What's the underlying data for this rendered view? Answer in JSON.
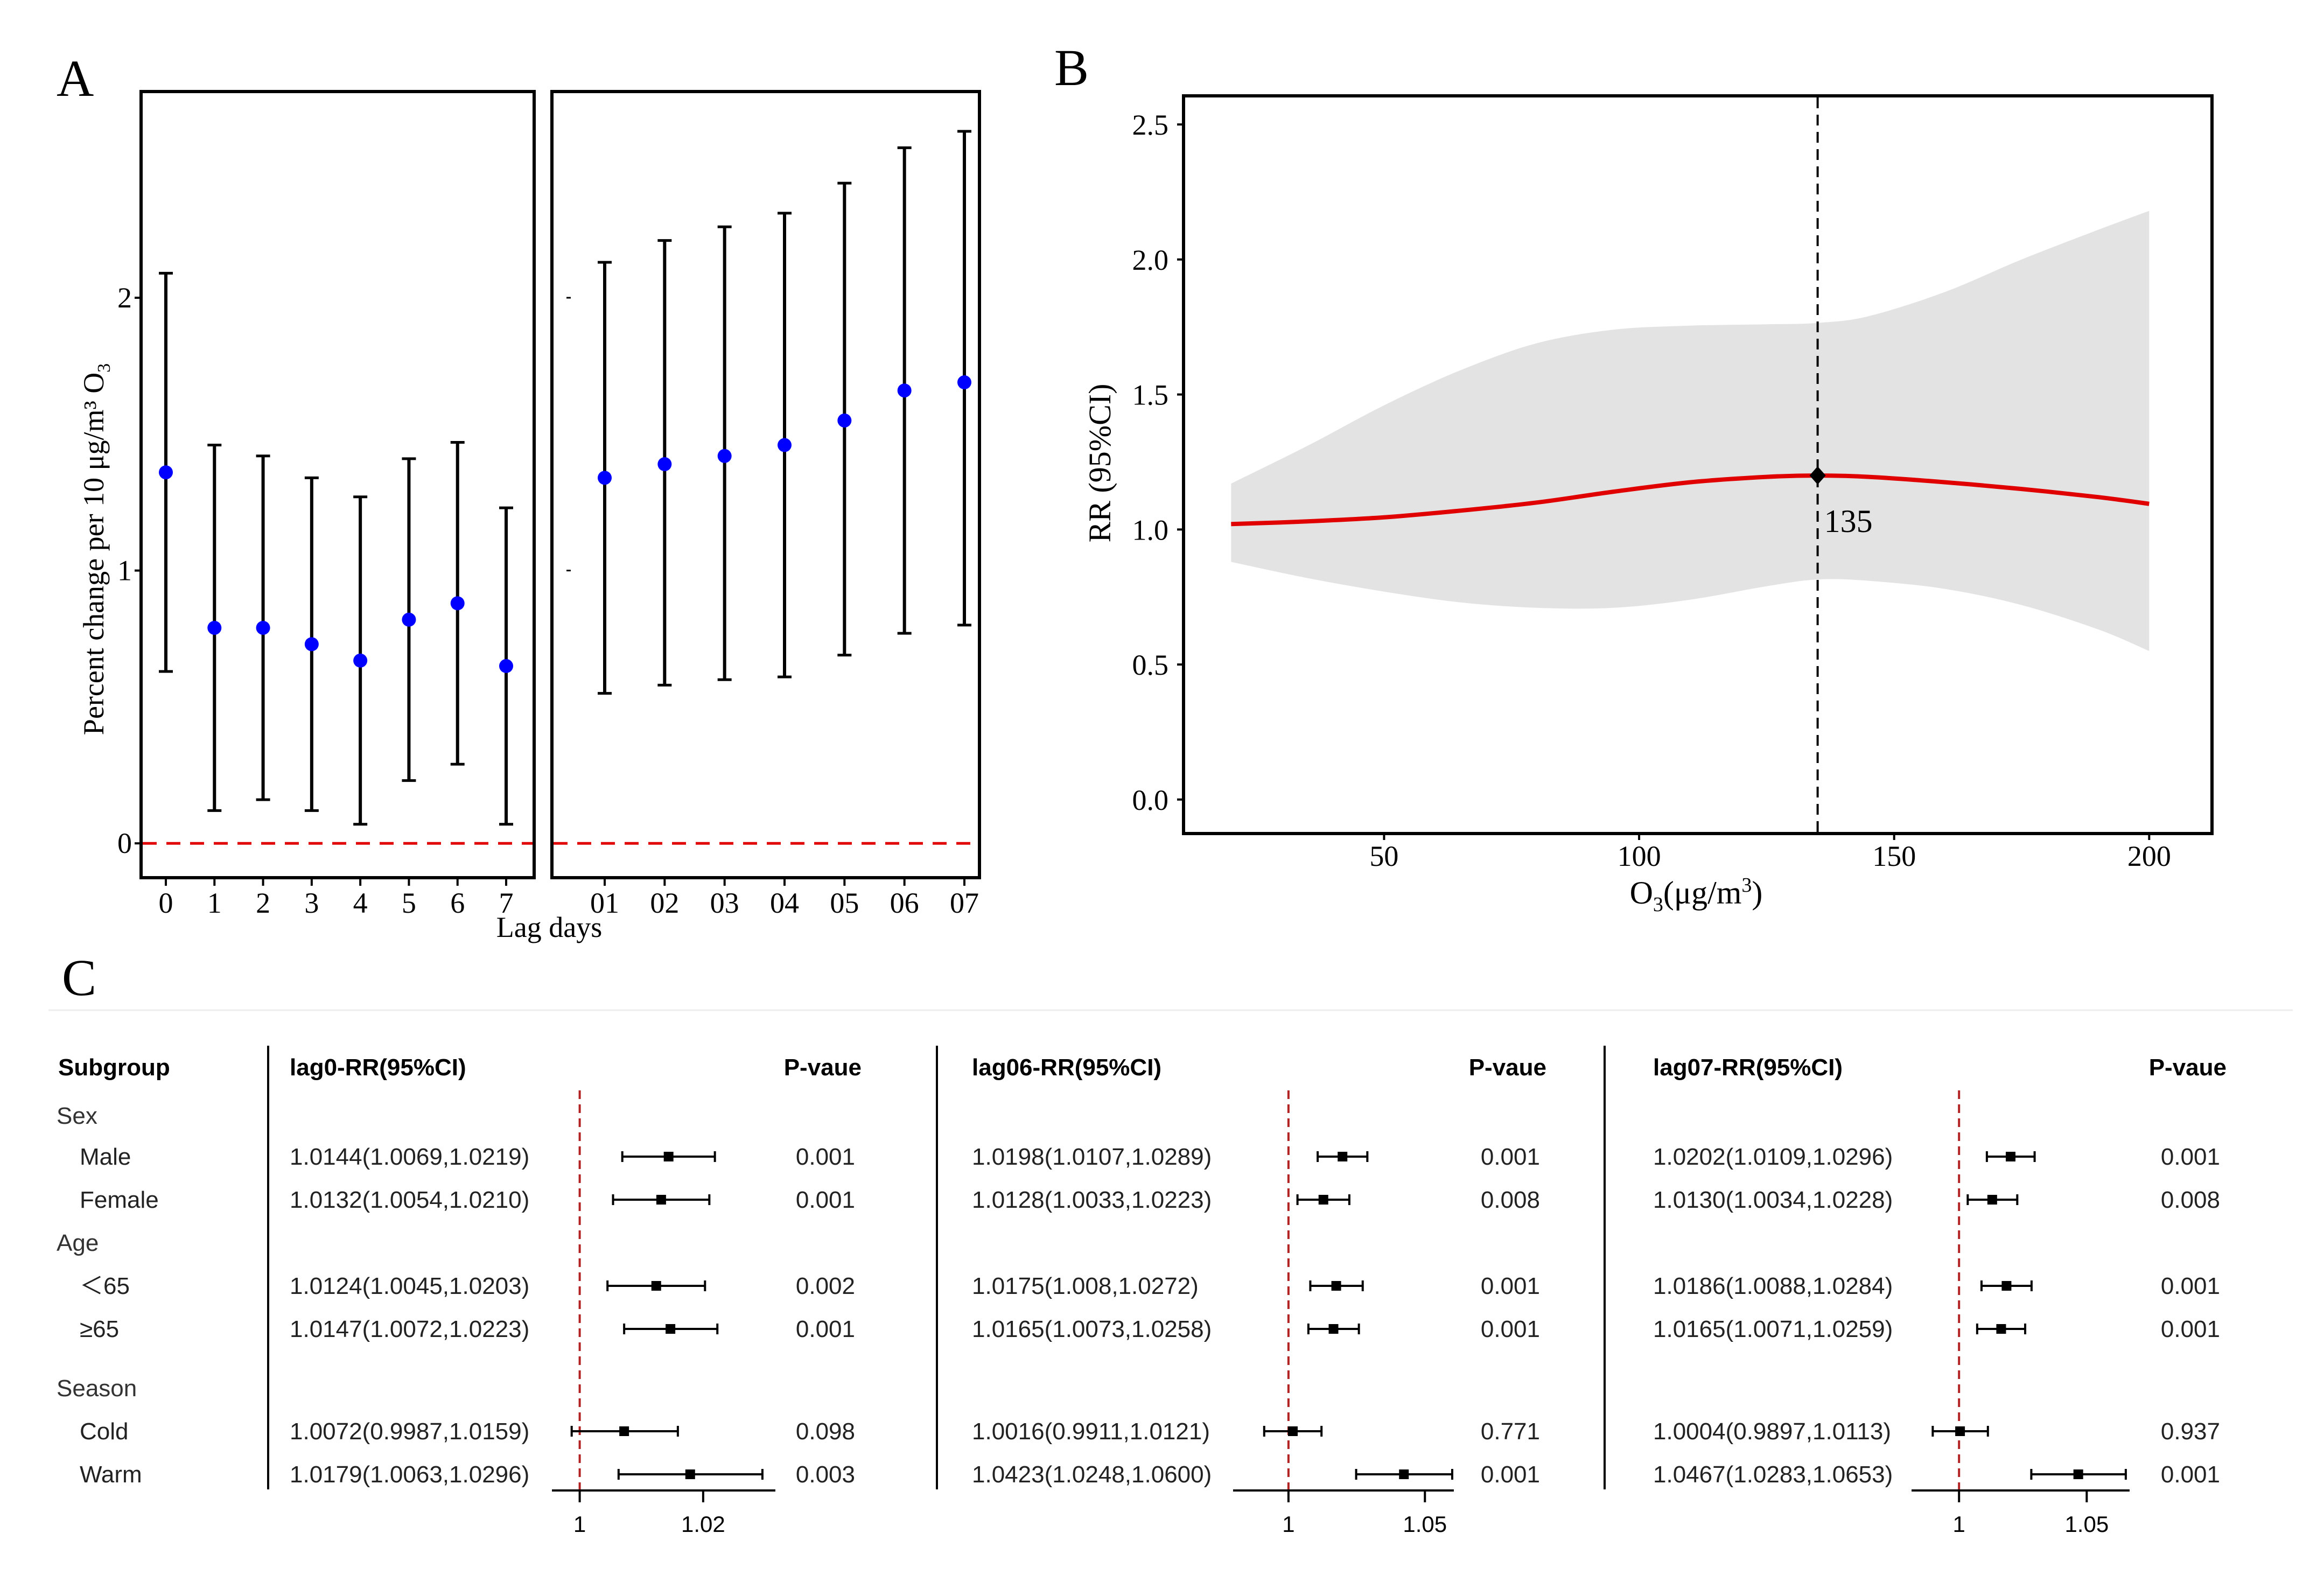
{
  "panel_labels": {
    "a": "A",
    "b": "B",
    "c": "C"
  },
  "colors": {
    "point": "#0000ff",
    "curve": "#e00000",
    "ref": "#e00000",
    "band": "#e3e3e3",
    "forest_ref": "#b22222",
    "ink": "#000000"
  },
  "chart_data": [
    {
      "type": "scatter",
      "panel": "A-single-lag",
      "title": "",
      "xlabel": "Lag days",
      "ylabel_main": "Percent change per 10 μg/m³ O",
      "ylabel_sub": "3",
      "categories": [
        "0",
        "1",
        "2",
        "3",
        "4",
        "5",
        "6",
        "7"
      ],
      "estimates": [
        1.36,
        0.79,
        0.79,
        0.73,
        0.67,
        0.82,
        0.88,
        0.65
      ],
      "lower": [
        0.63,
        0.12,
        0.16,
        0.12,
        0.07,
        0.23,
        0.29,
        0.07
      ],
      "upper": [
        2.09,
        1.46,
        1.42,
        1.34,
        1.27,
        1.41,
        1.47,
        1.23
      ],
      "y_ticks": [
        "0",
        "1",
        "2"
      ],
      "ylim": [
        -0.12,
        2.75
      ],
      "ref_line": 0
    },
    {
      "type": "scatter",
      "panel": "A-cumulative-lag",
      "categories": [
        "01",
        "02",
        "03",
        "04",
        "05",
        "06",
        "07"
      ],
      "estimates": [
        1.34,
        1.39,
        1.42,
        1.46,
        1.55,
        1.66,
        1.69
      ],
      "lower": [
        0.55,
        0.58,
        0.6,
        0.61,
        0.69,
        0.77,
        0.8
      ],
      "upper": [
        2.13,
        2.21,
        2.26,
        2.31,
        2.42,
        2.55,
        2.61
      ],
      "ylim": [
        -0.12,
        2.75
      ],
      "ref_line": 0
    },
    {
      "type": "line",
      "panel": "B",
      "xlabel_main": "O",
      "xlabel_sub": "3",
      "xlabel_unit": "(μg/m",
      "xlabel_sup": "3",
      "xlabel_end": ")",
      "ylabel": "RR (95%CI)",
      "x_ticks": [
        "50",
        "100",
        "150",
        "200"
      ],
      "y_ticks": [
        "0.0",
        "0.5",
        "1.0",
        "1.5",
        "2.0",
        "2.5"
      ],
      "xlim": [
        11,
        212
      ],
      "ylim": [
        -0.12,
        2.6
      ],
      "x": [
        20,
        35,
        50,
        65,
        80,
        95,
        110,
        125,
        135,
        145,
        160,
        175,
        190,
        200
      ],
      "rr": [
        1.02,
        1.03,
        1.045,
        1.07,
        1.1,
        1.14,
        1.175,
        1.195,
        1.2,
        1.195,
        1.175,
        1.15,
        1.12,
        1.095
      ],
      "ci_lower": [
        0.88,
        0.82,
        0.77,
        0.73,
        0.71,
        0.71,
        0.74,
        0.79,
        0.815,
        0.81,
        0.78,
        0.72,
        0.63,
        0.55
      ],
      "ci_upper": [
        1.17,
        1.31,
        1.46,
        1.59,
        1.69,
        1.74,
        1.755,
        1.76,
        1.765,
        1.79,
        1.88,
        2.0,
        2.11,
        2.18
      ],
      "threshold": 135,
      "threshold_label": "135"
    },
    {
      "type": "table",
      "panel": "C",
      "header_subgroup": "Subgroup",
      "rows": [
        {
          "label": "Sex",
          "kind": "group"
        },
        {
          "label": "Male",
          "kind": "item"
        },
        {
          "label": "Female",
          "kind": "item"
        },
        {
          "label": "Age",
          "kind": "group"
        },
        {
          "label": "＜65",
          "kind": "item"
        },
        {
          "label": "≥65",
          "kind": "item"
        },
        {
          "label": "Season",
          "kind": "group"
        },
        {
          "label": "Cold",
          "kind": "item"
        },
        {
          "label": "Warm",
          "kind": "item"
        }
      ],
      "blocks": [
        {
          "title": "lag0-RR(95%CI)",
          "p_title": "P-vaue",
          "axis_min": 0.9955,
          "axis_max": 1.0317,
          "ticks": [
            {
              "v": 1,
              "label": "1"
            },
            {
              "v": 1.02,
              "label": "1.02"
            }
          ],
          "entries": [
            {
              "text": "1.0144(1.0069,1.0219)",
              "rr": 1.0144,
              "lo": 1.0069,
              "hi": 1.0219,
              "p": "0.001"
            },
            {
              "text": "1.0132(1.0054,1.0210)",
              "rr": 1.0132,
              "lo": 1.0054,
              "hi": 1.021,
              "p": "0.001"
            },
            {
              "text": "1.0124(1.0045,1.0203)",
              "rr": 1.0124,
              "lo": 1.0045,
              "hi": 1.0203,
              "p": "0.002"
            },
            {
              "text": "1.0147(1.0072,1.0223)",
              "rr": 1.0147,
              "lo": 1.0072,
              "hi": 1.0223,
              "p": "0.001"
            },
            {
              "text": "1.0072(0.9987,1.0159)",
              "rr": 1.0072,
              "lo": 0.9987,
              "hi": 1.0159,
              "p": "0.098"
            },
            {
              "text": "1.0179(1.0063,1.0296)",
              "rr": 1.0179,
              "lo": 1.0063,
              "hi": 1.0296,
              "p": "0.003"
            }
          ]
        },
        {
          "title": "lag06-RR(95%CI)",
          "p_title": "P-vaue",
          "axis_min": 0.9797,
          "axis_max": 1.0606,
          "ticks": [
            {
              "v": 1,
              "label": "1"
            },
            {
              "v": 1.05,
              "label": "1.05"
            }
          ],
          "entries": [
            {
              "text": "1.0198(1.0107,1.0289)",
              "rr": 1.0198,
              "lo": 1.0107,
              "hi": 1.0289,
              "p": "0.001"
            },
            {
              "text": "1.0128(1.0033,1.0223)",
              "rr": 1.0128,
              "lo": 1.0033,
              "hi": 1.0223,
              "p": "0.008"
            },
            {
              "text": "1.0175(1.008,1.0272)",
              "rr": 1.0175,
              "lo": 1.008,
              "hi": 1.0272,
              "p": "0.001"
            },
            {
              "text": "1.0165(1.0073,1.0258)",
              "rr": 1.0165,
              "lo": 1.0073,
              "hi": 1.0258,
              "p": "0.001"
            },
            {
              "text": "1.0016(0.9911,1.0121)",
              "rr": 1.0016,
              "lo": 0.9911,
              "hi": 1.0121,
              "p": "0.771"
            },
            {
              "text": "1.0423(1.0248,1.0600)",
              "rr": 1.0423,
              "lo": 1.0248,
              "hi": 1.06,
              "p": "0.001"
            }
          ]
        },
        {
          "title": "lag07-RR(95%CI)",
          "p_title": "P-vaue",
          "axis_min": 0.9814,
          "axis_max": 1.0668,
          "ticks": [
            {
              "v": 1,
              "label": "1"
            },
            {
              "v": 1.05,
              "label": "1.05"
            }
          ],
          "entries": [
            {
              "text": "1.0202(1.0109,1.0296)",
              "rr": 1.0202,
              "lo": 1.0109,
              "hi": 1.0296,
              "p": "0.001"
            },
            {
              "text": "1.0130(1.0034,1.0228)",
              "rr": 1.013,
              "lo": 1.0034,
              "hi": 1.0228,
              "p": "0.008"
            },
            {
              "text": "1.0186(1.0088,1.0284)",
              "rr": 1.0186,
              "lo": 1.0088,
              "hi": 1.0284,
              "p": "0.001"
            },
            {
              "text": "1.0165(1.0071,1.0259)",
              "rr": 1.0165,
              "lo": 1.0071,
              "hi": 1.0259,
              "p": "0.001"
            },
            {
              "text": "1.0004(0.9897,1.0113)",
              "rr": 1.0004,
              "lo": 0.9897,
              "hi": 1.0113,
              "p": "0.937"
            },
            {
              "text": "1.0467(1.0283,1.0653)",
              "rr": 1.0467,
              "lo": 1.0283,
              "hi": 1.0653,
              "p": "0.001"
            }
          ]
        }
      ]
    }
  ]
}
